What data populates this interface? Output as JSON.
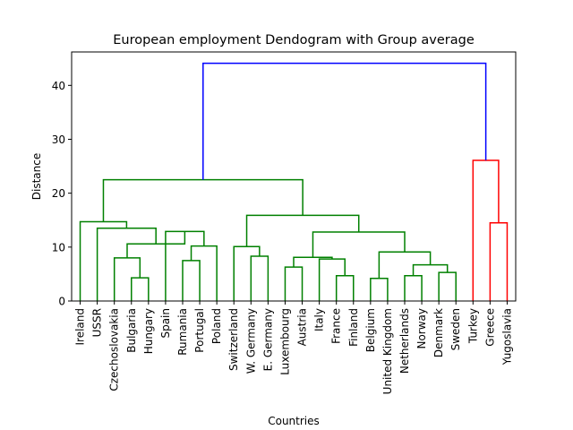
{
  "chart_data": {
    "type": "dendrogram",
    "title": "European employment Dendogram with Group average",
    "xlabel": "Countries",
    "ylabel": "Distance",
    "ylim": [
      0,
      46.2
    ],
    "yticks": [
      0,
      10,
      20,
      30,
      40
    ],
    "grid": false,
    "leaves": [
      "Ireland",
      "USSR",
      "Czechoslovakia",
      "Bulgaria",
      "Hungary",
      "Spain",
      "Rumania",
      "Portugal",
      "Poland",
      "Switzerland",
      "W. Germany",
      "E. Germany",
      "Luxembourg",
      "Austria",
      "Italy",
      "France",
      "Finland",
      "Belgium",
      "United Kingdom",
      "Netherlands",
      "Norway",
      "Denmark",
      "Sweden",
      "Turkey",
      "Greece",
      "Yugoslavia"
    ],
    "colors": {
      "cluster_a": "#008000",
      "cluster_b": "#ff0000",
      "root": "#0000ff"
    },
    "merges": [
      {
        "left": "Bulgaria",
        "right": "Hungary",
        "height": 4.3,
        "color": "cluster_a"
      },
      {
        "left": "Rumania",
        "right": "Portugal",
        "height": 7.5,
        "color": "cluster_a"
      },
      {
        "left": "Rumania, Portugal",
        "right": "Poland",
        "height": 10.2,
        "color": "cluster_a"
      },
      {
        "left": "Spain",
        "right": "Rumania, Portugal, Poland",
        "height": 12.9,
        "color": "cluster_a"
      },
      {
        "left": "Czechoslovakia",
        "right": "Bulgaria, Hungary",
        "height": 8.0,
        "color": "cluster_a"
      },
      {
        "left": "Czechoslovakia, Bulgaria, Hungary",
        "right": "Spain group",
        "height": 10.6,
        "color": "cluster_a"
      },
      {
        "left": "USSR",
        "right": "Czechoslovakia..Poland",
        "height": 13.5,
        "color": "cluster_a"
      },
      {
        "left": "Ireland",
        "right": "USSR..Poland",
        "height": 14.7,
        "color": "cluster_a"
      },
      {
        "left": "W. Germany",
        "right": "E. Germany",
        "height": 8.3,
        "color": "cluster_a"
      },
      {
        "left": "Switzerland",
        "right": "W. Germany, E. Germany",
        "height": 10.1,
        "color": "cluster_a"
      },
      {
        "left": "Luxembourg",
        "right": "Austria",
        "height": 6.3,
        "color": "cluster_a"
      },
      {
        "left": "France",
        "right": "Finland",
        "height": 4.7,
        "color": "cluster_a"
      },
      {
        "left": "Italy",
        "right": "France, Finland",
        "height": 7.8,
        "color": "cluster_a"
      },
      {
        "left": "Luxembourg, Austria",
        "right": "Italy, France, Finland",
        "height": 8.1,
        "color": "cluster_a"
      },
      {
        "left": "Belgium",
        "right": "United Kingdom",
        "height": 4.2,
        "color": "cluster_a"
      },
      {
        "left": "Netherlands",
        "right": "Norway",
        "height": 4.7,
        "color": "cluster_a"
      },
      {
        "left": "Denmark",
        "right": "Sweden",
        "height": 5.3,
        "color": "cluster_a"
      },
      {
        "left": "Netherlands, Norway",
        "right": "Denmark, Sweden",
        "height": 6.7,
        "color": "cluster_a"
      },
      {
        "left": "Belgium, United Kingdom",
        "right": "Netherlands..Sweden",
        "height": 9.1,
        "color": "cluster_a"
      },
      {
        "left": "Luxembourg..Finland",
        "right": "Belgium..Sweden",
        "height": 12.8,
        "color": "cluster_a"
      },
      {
        "left": "Switzerland group",
        "right": "Luxembourg..Sweden",
        "height": 15.9,
        "color": "cluster_a"
      },
      {
        "left": "Ireland..Poland",
        "right": "Switzerland..Sweden",
        "height": 22.5,
        "color": "cluster_a"
      },
      {
        "left": "Greece",
        "right": "Yugoslavia",
        "height": 14.5,
        "color": "cluster_b"
      },
      {
        "left": "Turkey",
        "right": "Greece, Yugoslavia",
        "height": 26.1,
        "color": "cluster_b"
      },
      {
        "left": "Ireland..Sweden",
        "right": "Turkey..Yugoslavia",
        "height": 44.1,
        "color": "root"
      }
    ]
  }
}
